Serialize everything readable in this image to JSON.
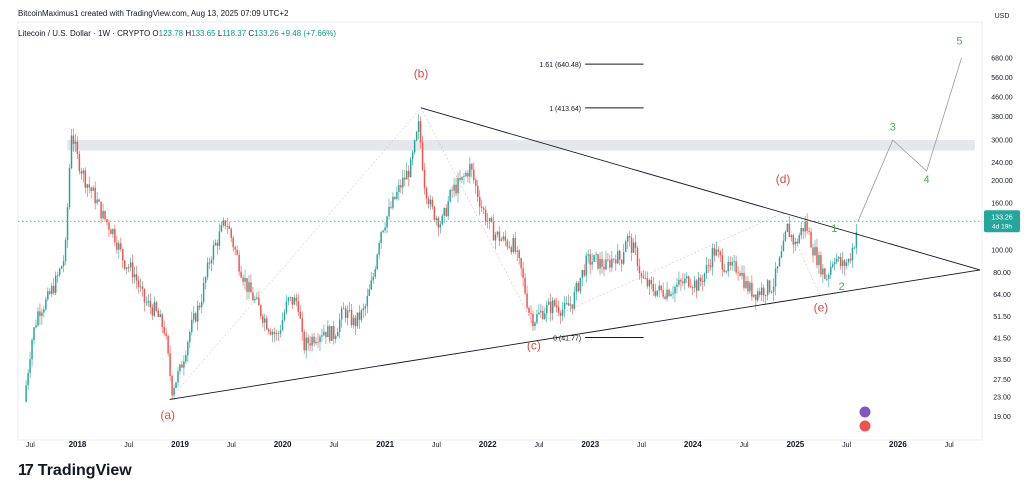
{
  "header": {
    "text": "BitcoinMaximus1 created with TradingView.com, Aug 13, 2025 07:09 UTC+2"
  },
  "legend": {
    "symbol": "Litecoin / U.S. Dollar · 1W · CRYPTO",
    "o_label": "O",
    "o": "123.78",
    "h_label": "H",
    "h": "133.65",
    "l_label": "L",
    "l": "118.37",
    "c_label": "C",
    "c": "133.26",
    "change": "+9.48 (+7.66%)"
  },
  "footer": {
    "brand": "TradingView",
    "logo_glyph": "17"
  },
  "colors": {
    "up": "#26a69a",
    "down": "#ef5350",
    "wave_red": "#d84b4b",
    "wave_green": "#4caf50",
    "line": "#131722",
    "fib": "#131722",
    "zone": "#d1d4dc",
    "price_tag": "#26a69a"
  },
  "chart_data": {
    "type": "candlestick",
    "symbol": "LTCUSD",
    "interval": "1W",
    "scale": "log",
    "ylim": [
      15,
      900
    ],
    "xlim": [
      "2017-04",
      "2026-10"
    ],
    "currency_label": "USD",
    "y_ticks": [
      680,
      560,
      460,
      380,
      300,
      240,
      200,
      160,
      100,
      80,
      64,
      51.5,
      41.5,
      33.5,
      27.5,
      23,
      19
    ],
    "y_tick_labels": [
      "680.00",
      "560.00",
      "460.00",
      "380.00",
      "300.00",
      "240.00",
      "200.00",
      "160.00",
      "100.00",
      "80.00",
      "64.00",
      "51.50",
      "41.50",
      "33.50",
      "27.50",
      "23.00",
      "19.00"
    ],
    "x_ticks": [
      {
        "t": 2017.54,
        "label": "Jul"
      },
      {
        "t": 2018.0,
        "label": "2018"
      },
      {
        "t": 2018.5,
        "label": "Jul"
      },
      {
        "t": 2019.0,
        "label": "2019"
      },
      {
        "t": 2019.5,
        "label": "Jul"
      },
      {
        "t": 2020.0,
        "label": "2020"
      },
      {
        "t": 2020.5,
        "label": "Jul"
      },
      {
        "t": 2021.0,
        "label": "2021"
      },
      {
        "t": 2021.5,
        "label": "Jul"
      },
      {
        "t": 2022.0,
        "label": "2022"
      },
      {
        "t": 2022.5,
        "label": "Jul"
      },
      {
        "t": 2023.0,
        "label": "2023"
      },
      {
        "t": 2023.5,
        "label": "Jul"
      },
      {
        "t": 2024.0,
        "label": "2024"
      },
      {
        "t": 2024.5,
        "label": "Jul"
      },
      {
        "t": 2025.0,
        "label": "2025"
      },
      {
        "t": 2025.5,
        "label": "Jul"
      },
      {
        "t": 2026.0,
        "label": "2026"
      },
      {
        "t": 2026.5,
        "label": "Jul"
      }
    ],
    "price_path": [
      [
        2017.48,
        22
      ],
      [
        2017.55,
        40
      ],
      [
        2017.62,
        55
      ],
      [
        2017.7,
        60
      ],
      [
        2017.8,
        75
      ],
      [
        2017.88,
        95
      ],
      [
        2017.94,
        330
      ],
      [
        2018.0,
        250
      ],
      [
        2018.08,
        200
      ],
      [
        2018.17,
        170
      ],
      [
        2018.25,
        140
      ],
      [
        2018.35,
        120
      ],
      [
        2018.45,
        90
      ],
      [
        2018.55,
        80
      ],
      [
        2018.65,
        60
      ],
      [
        2018.75,
        55
      ],
      [
        2018.85,
        45
      ],
      [
        2018.92,
        25
      ],
      [
        2019.0,
        30
      ],
      [
        2019.1,
        45
      ],
      [
        2019.2,
        60
      ],
      [
        2019.3,
        95
      ],
      [
        2019.45,
        135
      ],
      [
        2019.55,
        95
      ],
      [
        2019.65,
        70
      ],
      [
        2019.75,
        58
      ],
      [
        2019.85,
        48
      ],
      [
        2019.95,
        42
      ],
      [
        2020.05,
        60
      ],
      [
        2020.15,
        60
      ],
      [
        2020.2,
        38
      ],
      [
        2020.3,
        42
      ],
      [
        2020.4,
        45
      ],
      [
        2020.5,
        43
      ],
      [
        2020.6,
        55
      ],
      [
        2020.7,
        48
      ],
      [
        2020.8,
        55
      ],
      [
        2020.88,
        75
      ],
      [
        2020.95,
        120
      ],
      [
        2021.05,
        150
      ],
      [
        2021.15,
        190
      ],
      [
        2021.25,
        230
      ],
      [
        2021.33,
        350
      ],
      [
        2021.38,
        200
      ],
      [
        2021.45,
        150
      ],
      [
        2021.55,
        130
      ],
      [
        2021.65,
        180
      ],
      [
        2021.75,
        200
      ],
      [
        2021.83,
        230
      ],
      [
        2021.88,
        190
      ],
      [
        2021.95,
        150
      ],
      [
        2022.05,
        120
      ],
      [
        2022.15,
        110
      ],
      [
        2022.25,
        105
      ],
      [
        2022.33,
        80
      ],
      [
        2022.4,
        55
      ],
      [
        2022.45,
        50
      ],
      [
        2022.55,
        55
      ],
      [
        2022.65,
        58
      ],
      [
        2022.75,
        55
      ],
      [
        2022.83,
        60
      ],
      [
        2022.9,
        75
      ],
      [
        2022.97,
        90
      ],
      [
        2023.05,
        90
      ],
      [
        2023.15,
        85
      ],
      [
        2023.25,
        95
      ],
      [
        2023.3,
        90
      ],
      [
        2023.35,
        115
      ],
      [
        2023.45,
        95
      ],
      [
        2023.5,
        75
      ],
      [
        2023.6,
        68
      ],
      [
        2023.7,
        66
      ],
      [
        2023.8,
        68
      ],
      [
        2023.9,
        72
      ],
      [
        2023.97,
        75
      ],
      [
        2024.05,
        70
      ],
      [
        2024.15,
        85
      ],
      [
        2024.2,
        100
      ],
      [
        2024.28,
        90
      ],
      [
        2024.35,
        82
      ],
      [
        2024.45,
        85
      ],
      [
        2024.52,
        70
      ],
      [
        2024.6,
        65
      ],
      [
        2024.7,
        68
      ],
      [
        2024.78,
        70
      ],
      [
        2024.88,
        100
      ],
      [
        2024.92,
        125
      ],
      [
        2025.0,
        105
      ],
      [
        2025.05,
        120
      ],
      [
        2025.1,
        130
      ],
      [
        2025.18,
        100
      ],
      [
        2025.25,
        85
      ],
      [
        2025.3,
        75
      ],
      [
        2025.38,
        95
      ],
      [
        2025.45,
        85
      ],
      [
        2025.52,
        90
      ],
      [
        2025.58,
        110
      ],
      [
        2025.61,
        133.26
      ]
    ],
    "last_price": {
      "value": 133.26,
      "label": "133.26",
      "sub_label": "4d 19h"
    },
    "resistance_zone": {
      "from": 270,
      "to": 300
    },
    "fib_levels": [
      {
        "label": "1.61 (640.48)",
        "value": 640.48
      },
      {
        "label": "1 (413.64)",
        "value": 413.64
      },
      {
        "label": "0 (41.77)",
        "value": 41.77
      }
    ],
    "trendlines": [
      {
        "name": "upper",
        "from": [
          2021.35,
          413.64
        ],
        "to": [
          2026.8,
          82
        ]
      },
      {
        "name": "lower",
        "from": [
          2018.9,
          22.5
        ],
        "to": [
          2026.8,
          82
        ]
      }
    ],
    "wave_labels": [
      {
        "text": "(a)",
        "t": 2018.88,
        "price": 18.5,
        "color": "red"
      },
      {
        "text": "(b)",
        "t": 2021.35,
        "price": 560,
        "color": "red"
      },
      {
        "text": "(c)",
        "t": 2022.45,
        "price": 37,
        "color": "red"
      },
      {
        "text": "(d)",
        "t": 2024.88,
        "price": 195,
        "color": "red"
      },
      {
        "text": "(e)",
        "t": 2025.25,
        "price": 54,
        "color": "red"
      },
      {
        "text": "1",
        "t": 2025.38,
        "price": 120,
        "color": "green"
      },
      {
        "text": "2",
        "t": 2025.45,
        "price": 67,
        "color": "green"
      },
      {
        "text": "3",
        "t": 2025.95,
        "price": 330,
        "color": "green"
      },
      {
        "text": "4",
        "t": 2026.28,
        "price": 195,
        "color": "green"
      },
      {
        "text": "5",
        "t": 2026.6,
        "price": 780,
        "color": "green"
      }
    ],
    "projection_path": [
      [
        2025.61,
        133
      ],
      [
        2025.95,
        300
      ],
      [
        2026.28,
        220
      ],
      [
        2026.62,
        680
      ]
    ],
    "wave_guides": [
      [
        [
          2018.9,
          22.5
        ],
        [
          2021.35,
          413.64
        ]
      ],
      [
        [
          2021.35,
          413.64
        ],
        [
          2022.45,
          47
        ]
      ],
      [
        [
          2022.45,
          47
        ],
        [
          2024.88,
          145
        ]
      ],
      [
        [
          2024.88,
          145
        ],
        [
          2025.25,
          62
        ]
      ]
    ]
  }
}
